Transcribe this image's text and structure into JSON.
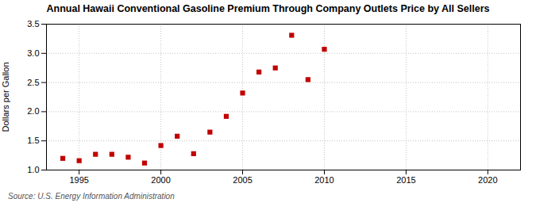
{
  "chart_data": {
    "type": "scatter",
    "title": "Annual Hawaii Conventional Gasoline Premium Through Company Outlets Price by All Sellers",
    "ylabel": "Dollars per Gallon",
    "annotation": "Source: U.S. Energy Information Administration",
    "x": [
      1994,
      1995,
      1996,
      1997,
      1998,
      1999,
      2000,
      2001,
      2002,
      2003,
      2004,
      2005,
      2006,
      2007,
      2008,
      2009,
      2010
    ],
    "values": [
      1.2,
      1.16,
      1.27,
      1.27,
      1.22,
      1.12,
      1.42,
      1.58,
      1.28,
      1.65,
      1.92,
      2.32,
      2.68,
      2.75,
      3.31,
      2.55,
      3.07
    ],
    "color": "#c00000",
    "marker": "square",
    "xlim": [
      1993,
      2022
    ],
    "ylim": [
      1.0,
      3.5
    ],
    "xticks": [
      1995,
      2000,
      2005,
      2010,
      2015,
      2020
    ],
    "yticks": [
      {
        "value": 1.0,
        "label": "1.0"
      },
      1.5,
      {
        "value": 2.0,
        "label": "2.0"
      },
      2.5,
      {
        "value": 3.0,
        "label": "3.0"
      },
      3.5
    ],
    "grid": true
  }
}
